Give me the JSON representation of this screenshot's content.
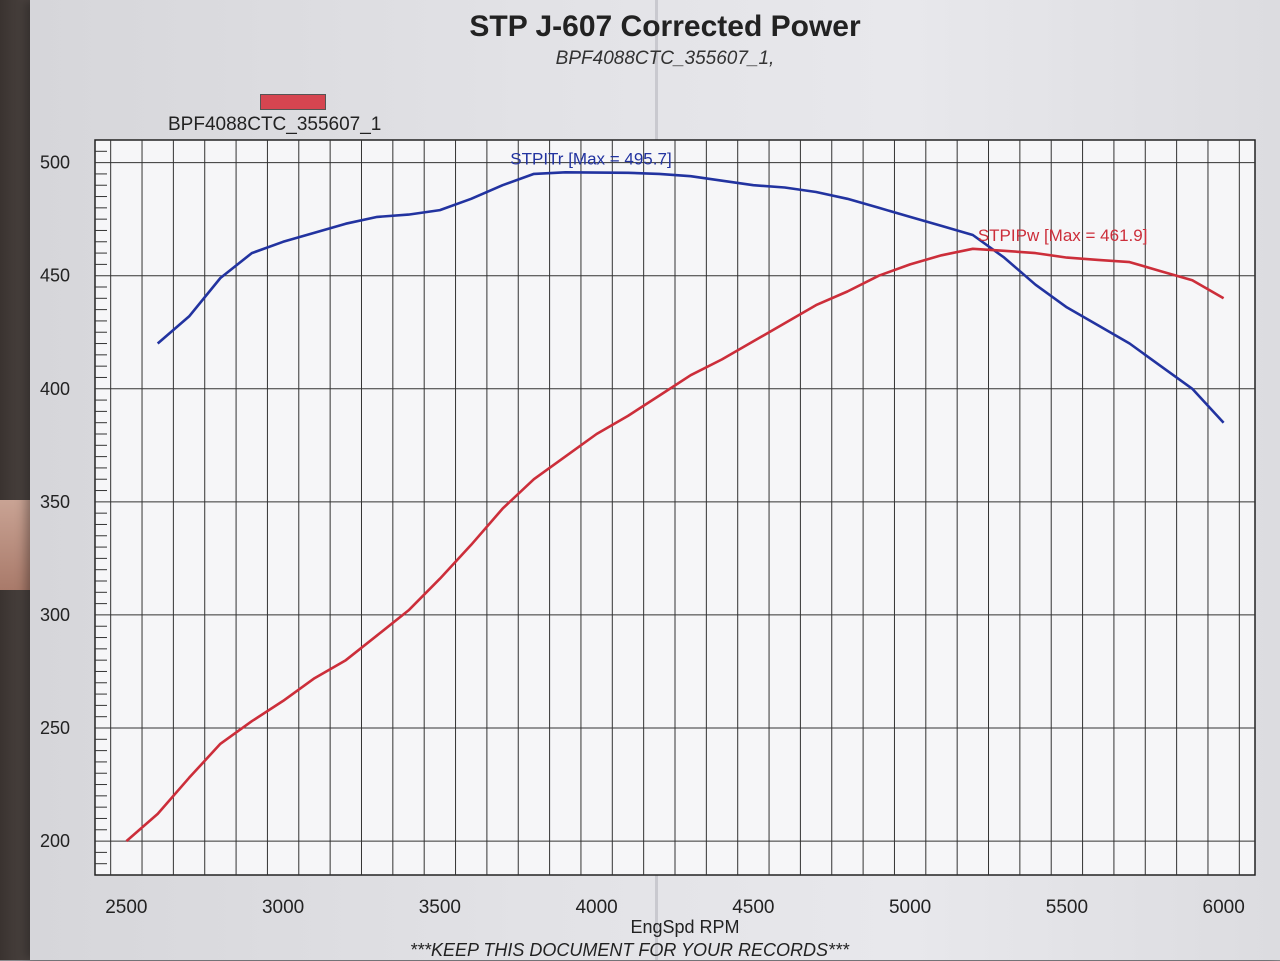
{
  "header": {
    "title": "STP J-607 Corrected Power",
    "subtitle": "BPF4088CTC_355607_1,"
  },
  "legend": {
    "label": "BPF4088CTC_355607_1",
    "color": "#d64550"
  },
  "footer": {
    "note": "***KEEP THIS DOCUMENT FOR YOUR RECORDS***"
  },
  "chart_data": {
    "type": "line",
    "xlabel": "EngSpd RPM",
    "ylabel": "",
    "xlim": [
      2400,
      6100
    ],
    "ylim": [
      185,
      510
    ],
    "x_ticks": [
      2500,
      3000,
      3500,
      4000,
      4500,
      5000,
      5500,
      6000
    ],
    "y_ticks": [
      200,
      250,
      300,
      350,
      400,
      450,
      500
    ],
    "grid": true,
    "series": [
      {
        "name": "STPITr",
        "annotation": "STPITr [Max = 495.7]",
        "color": "#2233a0",
        "points": [
          [
            2600,
            420
          ],
          [
            2700,
            432
          ],
          [
            2800,
            449
          ],
          [
            2900,
            460
          ],
          [
            3000,
            465
          ],
          [
            3100,
            469
          ],
          [
            3200,
            473
          ],
          [
            3300,
            476
          ],
          [
            3400,
            477
          ],
          [
            3500,
            479
          ],
          [
            3600,
            484
          ],
          [
            3700,
            490
          ],
          [
            3800,
            495
          ],
          [
            3900,
            495.7
          ],
          [
            4000,
            495.6
          ],
          [
            4100,
            495.5
          ],
          [
            4200,
            495
          ],
          [
            4300,
            494
          ],
          [
            4400,
            492
          ],
          [
            4500,
            490
          ],
          [
            4600,
            489
          ],
          [
            4700,
            487
          ],
          [
            4800,
            484
          ],
          [
            4900,
            480
          ],
          [
            5000,
            476
          ],
          [
            5100,
            472
          ],
          [
            5200,
            468
          ],
          [
            5300,
            458
          ],
          [
            5400,
            446
          ],
          [
            5500,
            436
          ],
          [
            5600,
            428
          ],
          [
            5700,
            420
          ],
          [
            5800,
            410
          ],
          [
            5900,
            400
          ],
          [
            6000,
            385
          ]
        ]
      },
      {
        "name": "STPIPw",
        "annotation": "STPIPw [Max = 461.9]",
        "color": "#cc2e3a",
        "points": [
          [
            2500,
            200
          ],
          [
            2600,
            212
          ],
          [
            2700,
            228
          ],
          [
            2800,
            243
          ],
          [
            2900,
            253
          ],
          [
            3000,
            262
          ],
          [
            3100,
            272
          ],
          [
            3200,
            280
          ],
          [
            3300,
            291
          ],
          [
            3400,
            302
          ],
          [
            3500,
            316
          ],
          [
            3600,
            331
          ],
          [
            3700,
            347
          ],
          [
            3800,
            360
          ],
          [
            3900,
            370
          ],
          [
            4000,
            380
          ],
          [
            4100,
            388
          ],
          [
            4200,
            397
          ],
          [
            4300,
            406
          ],
          [
            4400,
            413
          ],
          [
            4500,
            421
          ],
          [
            4600,
            429
          ],
          [
            4700,
            437
          ],
          [
            4800,
            443
          ],
          [
            4900,
            450
          ],
          [
            5000,
            455
          ],
          [
            5100,
            459
          ],
          [
            5200,
            461.9
          ],
          [
            5300,
            461
          ],
          [
            5400,
            460
          ],
          [
            5500,
            458
          ],
          [
            5600,
            457
          ],
          [
            5700,
            456
          ],
          [
            5800,
            452
          ],
          [
            5900,
            448
          ],
          [
            6000,
            440
          ]
        ]
      }
    ]
  }
}
